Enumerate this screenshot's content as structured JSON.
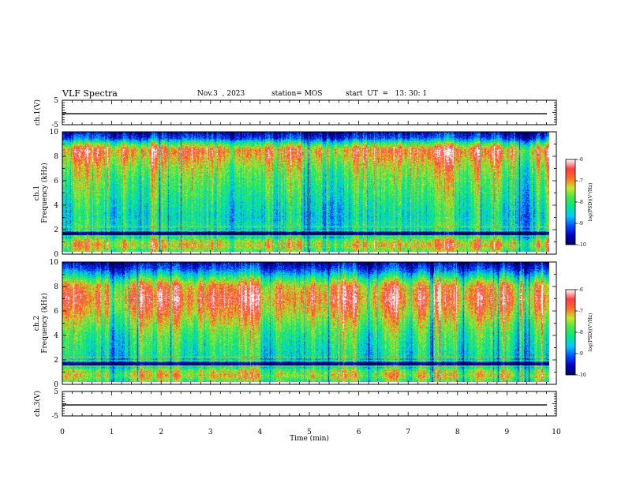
{
  "header": {
    "title": "VLF Spectra",
    "date": "Nov.3  , 2023",
    "station": "station= MOS",
    "start": "start  UT  =   13: 30: 1"
  },
  "colors": {
    "background": "#ffffff",
    "axis": "#000000",
    "colormap": [
      "#000060",
      "#0000c8",
      "#0050ff",
      "#00c8ff",
      "#00e68c",
      "#46e646",
      "#c8e628",
      "#ff6e28",
      "#ff3c46",
      "#ffffff"
    ]
  },
  "chart_data": [
    {
      "type": "line",
      "panel": "ch1-voltage",
      "ylabel": "ch.1(V)",
      "ylim": [
        -5,
        5
      ],
      "yticks": [
        "5",
        "-5"
      ],
      "xlim": [
        0,
        10
      ],
      "description_value": -0.5
    },
    {
      "type": "heatmap",
      "panel": "ch1-spectrogram",
      "ylabel": "ch.1\nFrequency (kHz)",
      "ylabel_lines": [
        "ch.1",
        "Frequency (kHz)"
      ],
      "ylim": [
        0,
        10
      ],
      "yticks": [
        "0",
        "2",
        "4",
        "6",
        "8",
        "10"
      ],
      "xlim": [
        0,
        10
      ],
      "data_end_min": 9.85,
      "profile_freq_khz": [
        0,
        0.5,
        1,
        1.5,
        2,
        3,
        4,
        5,
        6,
        7,
        8,
        8.5,
        9,
        9.5,
        10
      ],
      "profile_level": [
        0.55,
        0.7,
        0.6,
        0.15,
        0.45,
        0.4,
        0.45,
        0.5,
        0.55,
        0.62,
        0.75,
        0.8,
        0.55,
        0.2,
        0.1
      ],
      "colorbar": {
        "label": "log(PSD)(V²/Hz)",
        "ticks": [
          "-6",
          "-7",
          "-8",
          "-9",
          "-10"
        ],
        "range": [
          -10,
          -6
        ]
      }
    },
    {
      "type": "heatmap",
      "panel": "ch2-spectrogram",
      "ylabel": "ch.2\nFrequency (kHz)",
      "ylabel_lines": [
        "ch.2",
        "Frequency (kHz)"
      ],
      "ylim": [
        0,
        10
      ],
      "yticks": [
        "0",
        "2",
        "4",
        "6",
        "8",
        "10"
      ],
      "xlim": [
        0,
        10
      ],
      "data_end_min": 9.85,
      "profile_freq_khz": [
        0,
        0.5,
        1,
        1.5,
        2,
        3,
        4,
        5,
        6,
        7,
        8,
        8.5,
        9,
        9.5,
        10
      ],
      "profile_level": [
        0.5,
        0.65,
        0.55,
        0.15,
        0.4,
        0.45,
        0.5,
        0.6,
        0.72,
        0.8,
        0.72,
        0.55,
        0.35,
        0.18,
        0.08
      ],
      "colorbar": {
        "label": "log(PSD)(V²/Hz)",
        "ticks": [
          "-6",
          "-7",
          "-8",
          "-9",
          "-10"
        ],
        "range": [
          -10,
          -6
        ]
      }
    },
    {
      "type": "line",
      "panel": "ch3-voltage",
      "ylabel": "ch.3(V)",
      "ylim": [
        -5,
        5
      ],
      "yticks": [
        "5",
        "-5"
      ],
      "xlim": [
        0,
        10
      ],
      "description_value": -0.5
    }
  ],
  "xaxis": {
    "label": "Time  (min)",
    "ticks": [
      "0",
      "1",
      "2",
      "3",
      "4",
      "5",
      "6",
      "7",
      "8",
      "9",
      "10"
    ]
  }
}
